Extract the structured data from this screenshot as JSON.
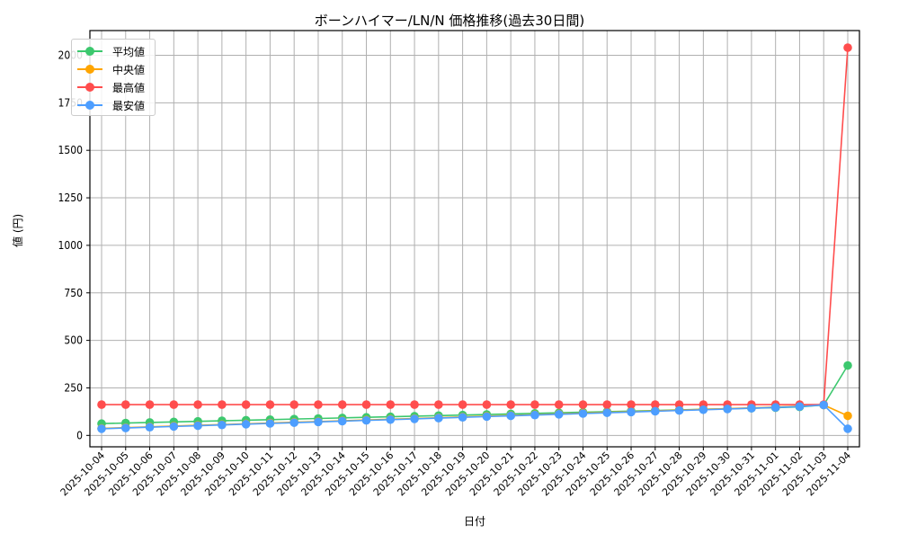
{
  "chart_data": {
    "type": "line",
    "title": "ボーンハイマー/LN/N 価格推移(過去30日間)",
    "xlabel": "日付",
    "ylabel": "値 (円)",
    "ylim": [
      -60,
      2130
    ],
    "yticks": [
      0,
      250,
      500,
      750,
      1000,
      1250,
      1500,
      1750,
      2000
    ],
    "grid": true,
    "legend_position": "upper left",
    "x": [
      "2025-10-04",
      "2025-10-05",
      "2025-10-06",
      "2025-10-07",
      "2025-10-08",
      "2025-10-09",
      "2025-10-10",
      "2025-10-11",
      "2025-10-12",
      "2025-10-13",
      "2025-10-14",
      "2025-10-15",
      "2025-10-16",
      "2025-10-17",
      "2025-10-18",
      "2025-10-19",
      "2025-10-20",
      "2025-10-21",
      "2025-10-22",
      "2025-10-23",
      "2025-10-24",
      "2025-10-25",
      "2025-10-26",
      "2025-10-27",
      "2025-10-28",
      "2025-10-29",
      "2025-10-30",
      "2025-10-31",
      "2025-11-01",
      "2025-11-02",
      "2025-11-03",
      "2025-11-04"
    ],
    "series": [
      {
        "name": "平均値",
        "color": "#3cc86e",
        "values": [
          62,
          65,
          68,
          71,
          74,
          77,
          80,
          83,
          86,
          89,
          92,
          95,
          98,
          101,
          104,
          107,
          110,
          113,
          116,
          119,
          122,
          125,
          128,
          131,
          134,
          137,
          140,
          143,
          146,
          150,
          160,
          368
        ]
      },
      {
        "name": "中央値",
        "color": "#ffa500",
        "values": [
          37,
          41,
          45,
          49,
          53,
          57,
          61,
          65,
          69,
          73,
          77,
          81,
          85,
          89,
          93,
          97,
          101,
          105,
          109,
          113,
          117,
          121,
          125,
          129,
          133,
          137,
          141,
          145,
          149,
          154,
          160,
          103
        ]
      },
      {
        "name": "最高値",
        "color": "#ff4d4d",
        "values": [
          162,
          162,
          162,
          162,
          162,
          162,
          162,
          162,
          162,
          162,
          162,
          162,
          162,
          162,
          162,
          162,
          162,
          162,
          162,
          162,
          162,
          162,
          162,
          162,
          162,
          162,
          162,
          162,
          162,
          162,
          162,
          2040
        ]
      },
      {
        "name": "最安値",
        "color": "#4d9eff",
        "values": [
          35,
          39,
          43,
          47,
          51,
          55,
          59,
          63,
          67,
          71,
          75,
          79,
          83,
          87,
          91,
          95,
          99,
          103,
          107,
          111,
          115,
          119,
          123,
          127,
          131,
          135,
          139,
          143,
          147,
          152,
          160,
          35
        ]
      }
    ]
  }
}
